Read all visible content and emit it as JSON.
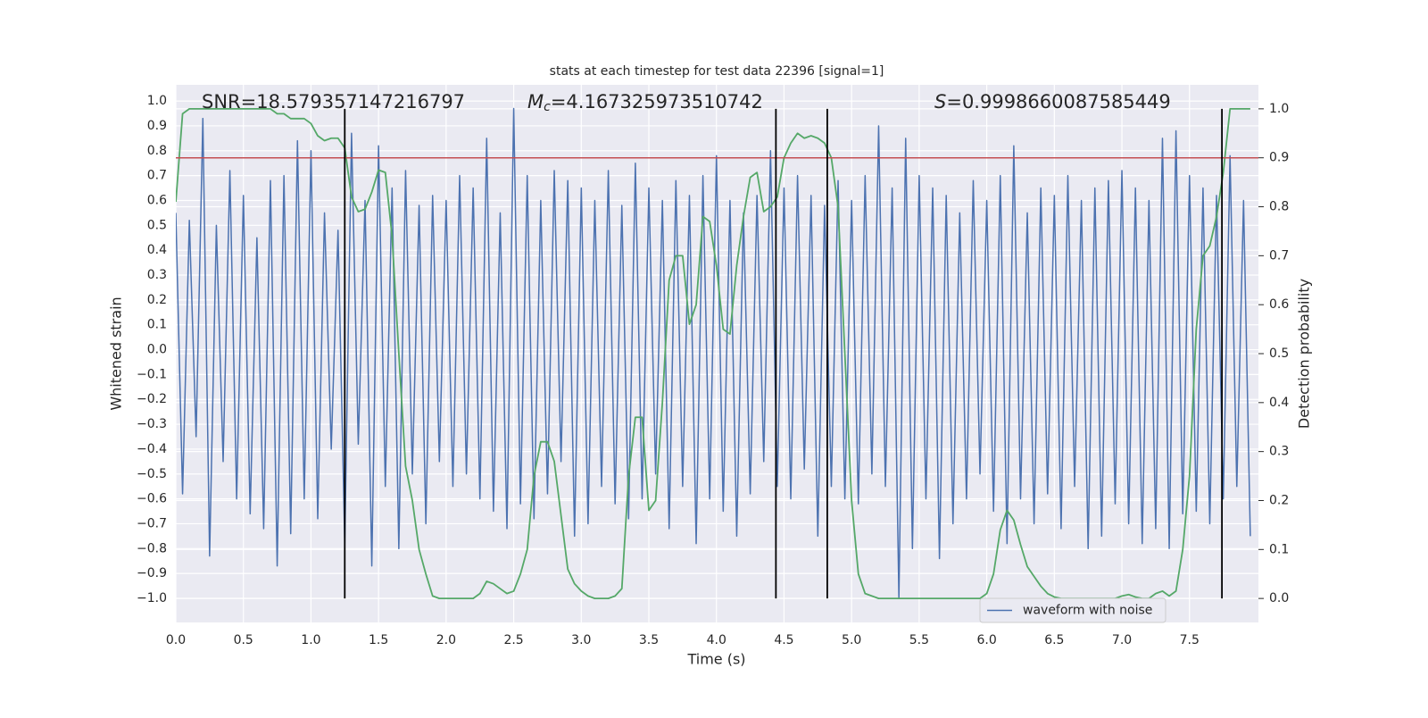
{
  "chart_data": {
    "type": "line",
    "title": "stats at each timestep for test data 22396 [signal=1]",
    "xlabel": "Time (s)",
    "ylabel": "Whitened strain",
    "y2label": "Detection probability",
    "annotations": {
      "snr": "SNR=18.579357147216797",
      "mc": {
        "symbol": "M",
        "subscript": "c",
        "text": "=4.167325973510742"
      },
      "s": {
        "symbol": "S",
        "text": "=0.9998660087585449"
      }
    },
    "x": [
      0.0,
      0.05,
      0.1,
      0.15,
      0.2,
      0.25,
      0.3,
      0.35,
      0.4,
      0.45,
      0.5,
      0.55,
      0.6,
      0.65,
      0.7,
      0.75,
      0.8,
      0.85,
      0.9,
      0.95,
      1.0,
      1.05,
      1.1,
      1.15,
      1.2,
      1.25,
      1.3,
      1.35,
      1.4,
      1.45,
      1.5,
      1.55,
      1.6,
      1.65,
      1.7,
      1.75,
      1.8,
      1.85,
      1.9,
      1.95,
      2.0,
      2.05,
      2.1,
      2.15,
      2.2,
      2.25,
      2.3,
      2.35,
      2.4,
      2.45,
      2.5,
      2.55,
      2.6,
      2.65,
      2.7,
      2.75,
      2.8,
      2.85,
      2.9,
      2.95,
      3.0,
      3.05,
      3.1,
      3.15,
      3.2,
      3.25,
      3.3,
      3.35,
      3.4,
      3.45,
      3.5,
      3.55,
      3.6,
      3.65,
      3.7,
      3.75,
      3.8,
      3.85,
      3.9,
      3.95,
      4.0,
      4.05,
      4.1,
      4.15,
      4.2,
      4.25,
      4.3,
      4.35,
      4.4,
      4.45,
      4.5,
      4.55,
      4.6,
      4.65,
      4.7,
      4.75,
      4.8,
      4.85,
      4.9,
      4.95,
      5.0,
      5.05,
      5.1,
      5.15,
      5.2,
      5.25,
      5.3,
      5.35,
      5.4,
      5.45,
      5.5,
      5.55,
      5.6,
      5.65,
      5.7,
      5.75,
      5.8,
      5.85,
      5.9,
      5.95,
      6.0,
      6.05,
      6.1,
      6.15,
      6.2,
      6.25,
      6.3,
      6.35,
      6.4,
      6.45,
      6.5,
      6.55,
      6.6,
      6.65,
      6.7,
      6.75,
      6.8,
      6.85,
      6.9,
      6.95,
      7.0,
      7.05,
      7.1,
      7.15,
      7.2,
      7.25,
      7.3,
      7.35,
      7.4,
      7.45,
      7.5,
      7.55,
      7.6,
      7.65,
      7.7,
      7.75,
      7.8,
      7.85,
      7.9,
      7.95
    ],
    "series": [
      {
        "name": "waveform with noise",
        "color": "#4c72b0",
        "values": [
          0.55,
          -0.58,
          0.52,
          -0.35,
          0.93,
          -0.83,
          0.5,
          -0.45,
          0.72,
          -0.6,
          0.62,
          -0.66,
          0.45,
          -0.72,
          0.68,
          -0.87,
          0.7,
          -0.74,
          0.84,
          -0.6,
          0.8,
          -0.68,
          0.55,
          -0.4,
          0.48,
          -0.78,
          0.87,
          -0.38,
          0.6,
          -0.87,
          0.82,
          -0.55,
          0.65,
          -0.8,
          0.72,
          -0.5,
          0.58,
          -0.7,
          0.62,
          -0.45,
          0.6,
          -0.55,
          0.7,
          -0.5,
          0.65,
          -0.6,
          0.85,
          -0.65,
          0.55,
          -0.72,
          0.97,
          -0.62,
          0.7,
          -0.68,
          0.6,
          -0.58,
          0.72,
          -0.45,
          0.68,
          -0.75,
          0.65,
          -0.7,
          0.6,
          -0.55,
          0.72,
          -0.62,
          0.58,
          -0.68,
          0.75,
          -0.6,
          0.65,
          -0.5,
          0.6,
          -0.72,
          0.68,
          -0.55,
          0.62,
          -0.78,
          0.7,
          -0.6,
          0.78,
          -0.65,
          0.6,
          -0.75,
          0.55,
          -0.58,
          0.62,
          -0.45,
          0.8,
          -0.55,
          0.65,
          -0.6,
          0.7,
          -0.48,
          0.62,
          -0.75,
          0.58,
          -0.55,
          0.68,
          -0.6,
          0.6,
          -0.62,
          0.7,
          -0.5,
          0.9,
          -0.55,
          0.65,
          -1.0,
          0.85,
          -0.8,
          0.7,
          -0.6,
          0.65,
          -0.84,
          0.62,
          -0.7,
          0.55,
          -0.6,
          0.68,
          -0.5,
          0.6,
          -0.65,
          0.7,
          -0.78,
          0.82,
          -0.6,
          0.55,
          -0.7,
          0.65,
          -0.58,
          0.62,
          -0.72,
          0.7,
          -0.55,
          0.6,
          -0.8,
          0.65,
          -0.75,
          0.68,
          -0.62,
          0.72,
          -0.7,
          0.65,
          -0.78,
          0.6,
          -0.72,
          0.85,
          -0.8,
          0.88,
          -0.66,
          0.7,
          -0.65,
          0.65,
          -0.7,
          0.62,
          -0.6,
          0.78,
          -0.55,
          0.6,
          -0.75
        ]
      },
      {
        "color": "#55a868",
        "axis": "y2",
        "values": [
          0.81,
          0.99,
          1.0,
          1.0,
          1.0,
          1.0,
          1.0,
          1.0,
          1.0,
          1.0,
          1.0,
          1.0,
          1.0,
          1.0,
          1.0,
          0.99,
          0.99,
          0.98,
          0.98,
          0.98,
          0.97,
          0.945,
          0.935,
          0.94,
          0.94,
          0.92,
          0.82,
          0.79,
          0.795,
          0.83,
          0.875,
          0.87,
          0.74,
          0.5,
          0.27,
          0.2,
          0.1,
          0.05,
          0.005,
          0.0,
          0.0,
          0.0,
          0.0,
          0.0,
          0.0,
          0.01,
          0.035,
          0.03,
          0.02,
          0.01,
          0.015,
          0.05,
          0.1,
          0.25,
          0.32,
          0.32,
          0.28,
          0.17,
          0.06,
          0.03,
          0.015,
          0.005,
          0.0,
          0.0,
          0.0,
          0.005,
          0.02,
          0.25,
          0.37,
          0.37,
          0.18,
          0.2,
          0.4,
          0.65,
          0.7,
          0.7,
          0.56,
          0.6,
          0.78,
          0.77,
          0.68,
          0.55,
          0.54,
          0.68,
          0.78,
          0.86,
          0.87,
          0.79,
          0.8,
          0.82,
          0.9,
          0.93,
          0.95,
          0.94,
          0.945,
          0.94,
          0.93,
          0.9,
          0.8,
          0.5,
          0.2,
          0.05,
          0.01,
          0.005,
          0.0,
          0.0,
          0.0,
          0.0,
          0.0,
          0.0,
          0.0,
          0.0,
          0.0,
          0.0,
          0.0,
          0.0,
          0.0,
          0.0,
          0.0,
          0.0,
          0.01,
          0.05,
          0.14,
          0.18,
          0.16,
          0.11,
          0.065,
          0.045,
          0.025,
          0.01,
          0.003,
          0.0,
          0.0,
          0.0,
          0.0,
          0.0,
          0.0,
          0.0,
          0.0,
          0.0,
          0.005,
          0.008,
          0.003,
          0.0,
          0.0,
          0.01,
          0.015,
          0.005,
          0.015,
          0.1,
          0.25,
          0.55,
          0.7,
          0.72,
          0.78,
          0.87,
          1.0,
          1.0,
          1.0,
          1.0
        ]
      }
    ],
    "hlines": [
      {
        "value": 0.9,
        "axis": "y2",
        "color": "#c44e52"
      }
    ],
    "vlines": {
      "x": [
        1.25,
        4.44,
        4.82,
        7.74
      ],
      "ymin": 0,
      "ymax": 1,
      "axis": "y2",
      "color": "#000000"
    },
    "xlim": [
      0,
      8.01
    ],
    "ylim": [
      -1.097,
      1.065
    ],
    "y2lim": [
      -0.049,
      1.049
    ],
    "xticks": [
      {
        "value": 0,
        "label": "0.0"
      },
      {
        "value": 0.5,
        "label": "0.5"
      },
      {
        "value": 1,
        "label": "1.0"
      },
      {
        "value": 1.5,
        "label": "1.5"
      },
      {
        "value": 2,
        "label": "2.0"
      },
      {
        "value": 2.5,
        "label": "2.5"
      },
      {
        "value": 3,
        "label": "3.0"
      },
      {
        "value": 3.5,
        "label": "3.5"
      },
      {
        "value": 4,
        "label": "4.0"
      },
      {
        "value": 4.5,
        "label": "4.5"
      },
      {
        "value": 5,
        "label": "5.0"
      },
      {
        "value": 5.5,
        "label": "5.5"
      },
      {
        "value": 6,
        "label": "6.0"
      },
      {
        "value": 6.5,
        "label": "6.5"
      },
      {
        "value": 7,
        "label": "7.0"
      },
      {
        "value": 7.5,
        "label": "7.5"
      }
    ],
    "yticks": [
      {
        "value": -1,
        "label": "−1.0"
      },
      {
        "value": -0.9,
        "label": "−0.9"
      },
      {
        "value": -0.8,
        "label": "−0.8"
      },
      {
        "value": -0.7,
        "label": "−0.7"
      },
      {
        "value": -0.6,
        "label": "−0.6"
      },
      {
        "value": -0.5,
        "label": "−0.5"
      },
      {
        "value": -0.4,
        "label": "−0.4"
      },
      {
        "value": -0.3,
        "label": "−0.3"
      },
      {
        "value": -0.2,
        "label": "−0.2"
      },
      {
        "value": -0.1,
        "label": "−0.1"
      },
      {
        "value": 0,
        "label": "0.0"
      },
      {
        "value": 0.1,
        "label": "0.1"
      },
      {
        "value": 0.2,
        "label": "0.2"
      },
      {
        "value": 0.3,
        "label": "0.3"
      },
      {
        "value": 0.4,
        "label": "0.4"
      },
      {
        "value": 0.5,
        "label": "0.5"
      },
      {
        "value": 0.6,
        "label": "0.6"
      },
      {
        "value": 0.7,
        "label": "0.7"
      },
      {
        "value": 0.8,
        "label": "0.8"
      },
      {
        "value": 0.9,
        "label": "0.9"
      },
      {
        "value": 1,
        "label": "1.0"
      }
    ],
    "y2ticks": [
      {
        "value": 0,
        "label": "0.0"
      },
      {
        "value": 0.1,
        "label": "0.1"
      },
      {
        "value": 0.2,
        "label": "0.2"
      },
      {
        "value": 0.3,
        "label": "0.3"
      },
      {
        "value": 0.4,
        "label": "0.4"
      },
      {
        "value": 0.5,
        "label": "0.5"
      },
      {
        "value": 0.6,
        "label": "0.6"
      },
      {
        "value": 0.7,
        "label": "0.7"
      },
      {
        "value": 0.8,
        "label": "0.8"
      },
      {
        "value": 0.9,
        "label": "0.9"
      },
      {
        "value": 1,
        "label": "1.0"
      }
    ],
    "grid": true,
    "legend": "lower right"
  }
}
